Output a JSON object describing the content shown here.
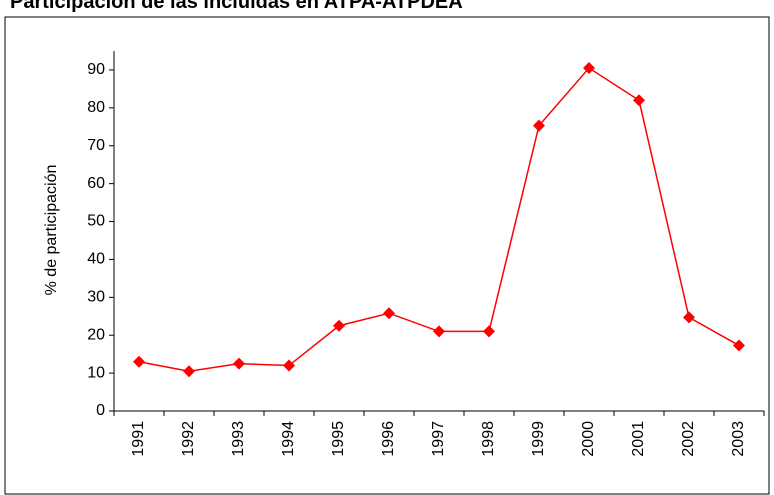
{
  "chart_data": {
    "type": "line",
    "title": "Participación de las incluidas en ATPA-ATPDEA",
    "y_label": "% de participación",
    "categories": [
      "1991",
      "1992",
      "1993",
      "1994",
      "1995",
      "1996",
      "1997",
      "1998",
      "1999",
      "2000",
      "2001",
      "2002",
      "2003"
    ],
    "series": [
      {
        "name": "% de participación",
        "color": "#ff0000",
        "values": [
          13,
          10.5,
          12.5,
          12,
          22.5,
          25.8,
          21,
          21,
          75.3,
          90.5,
          82,
          24.7,
          17.3
        ]
      }
    ],
    "ylim": [
      0,
      95
    ],
    "yticks": [
      0,
      10,
      20,
      30,
      40,
      50,
      60,
      70,
      80,
      90
    ],
    "grid": false
  }
}
